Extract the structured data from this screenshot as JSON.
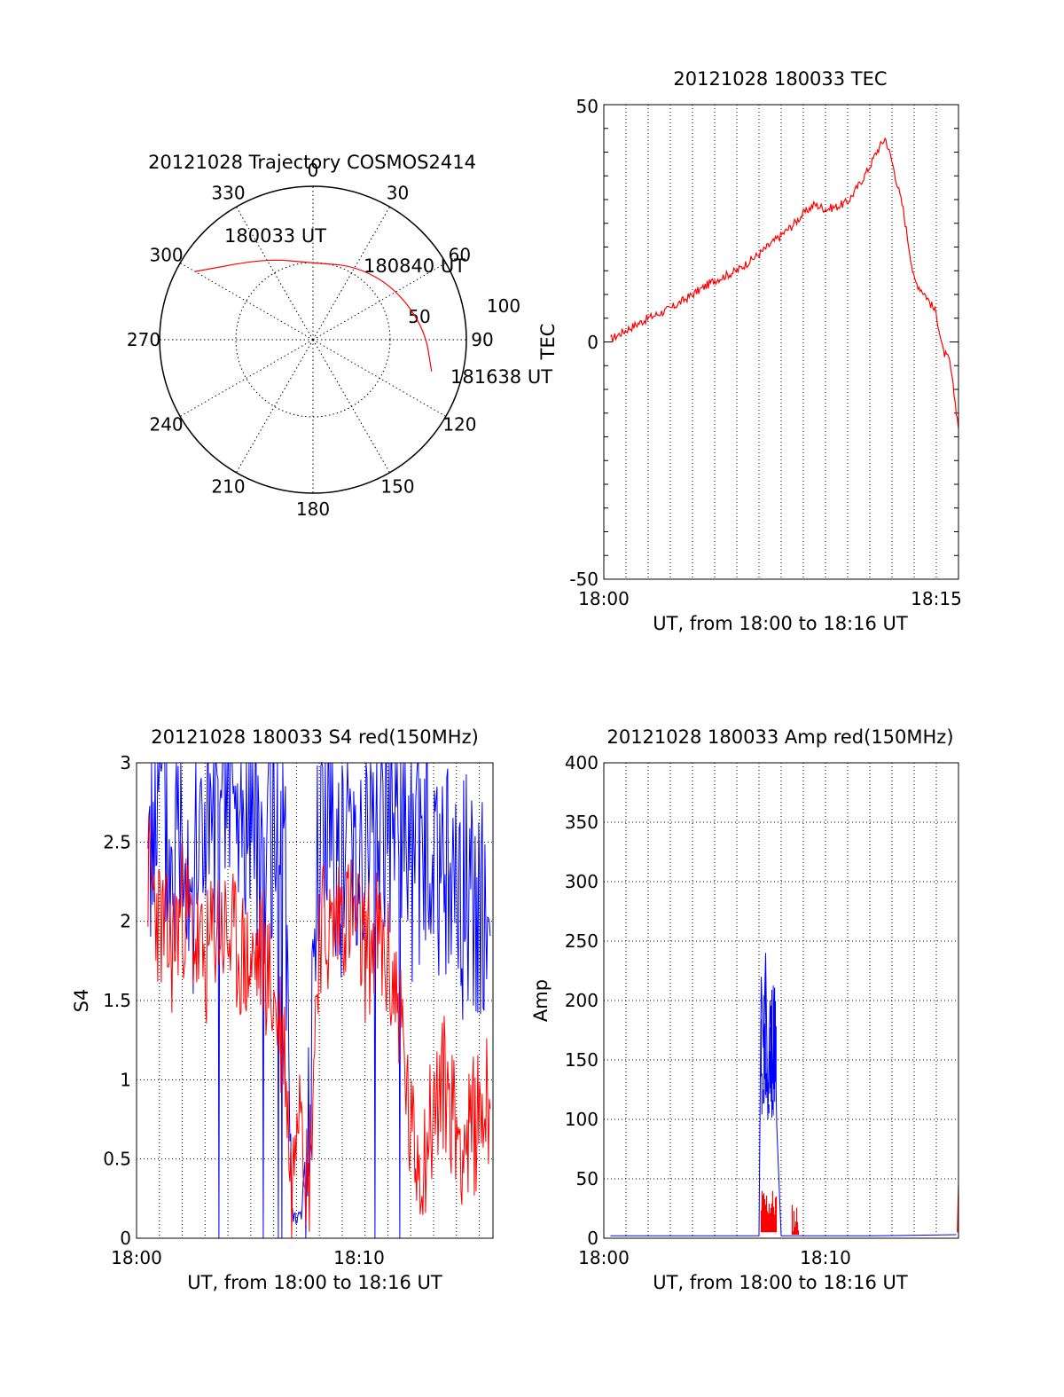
{
  "chart_data": [
    {
      "type": "polar-trajectory",
      "title": "20121028 Trajectory COSMOS2414",
      "azimuth_labels": [
        "0",
        "30",
        "60",
        "90",
        "120",
        "150",
        "180",
        "210",
        "240",
        "270",
        "300",
        "330"
      ],
      "radial_labels": [
        "50",
        "100"
      ],
      "annotations": [
        "180033 UT",
        "180840 UT",
        "181638 UT"
      ],
      "trajectory": [
        {
          "time": "180033 UT",
          "az": 300,
          "el": 10
        },
        {
          "az": 330,
          "el": 35
        },
        {
          "az": 0,
          "el": 45
        },
        {
          "az": 30,
          "el": 40
        },
        {
          "time": "180840 UT",
          "az": 58,
          "el": 33
        },
        {
          "az": 85,
          "el": 24
        },
        {
          "time": "181638 UT",
          "az": 105,
          "el": 18
        }
      ],
      "colors": {
        "trajectory": "#ff0000",
        "grid": "#000000"
      }
    },
    {
      "type": "line",
      "title": "20121028 180033 TEC",
      "xlabel": "UT, from 18:00 to 18:16 UT",
      "ylabel": "TEC",
      "x_ticks": [
        "18:00",
        "18:15"
      ],
      "y_ticks": [
        "50",
        "0",
        "-50"
      ],
      "xlim": [
        0,
        16
      ],
      "ylim": [
        -50,
        50
      ],
      "grid": "vertical-dotted",
      "series": [
        {
          "color": "#ff0000",
          "x": [
            0.3,
            1.0,
            2.0,
            3.0,
            4.0,
            5.0,
            6.0,
            7.0,
            8.0,
            8.5,
            9.0,
            9.5,
            10.0,
            10.5,
            11.0,
            11.5,
            12.0,
            12.3,
            12.7,
            13.0,
            13.5,
            14.0,
            14.5,
            15.0,
            15.3,
            15.6,
            16.0
          ],
          "y": [
            0.5,
            2.5,
            5.0,
            7.0,
            10.0,
            13.0,
            15.0,
            18.5,
            22.5,
            24.5,
            27.0,
            29.0,
            28.0,
            28.5,
            29.5,
            33.0,
            37.0,
            40.0,
            43.0,
            38.0,
            28.0,
            13.0,
            10.0,
            6.0,
            -2.0,
            -4.0,
            -18.0
          ]
        }
      ]
    },
    {
      "type": "line",
      "title": "20121028 180033 S4 red(150MHz)",
      "xlabel": "UT, from 18:00 to 18:16 UT",
      "ylabel": "S4",
      "x_ticks": [
        "18:00",
        "18:10"
      ],
      "y_ticks": [
        "0",
        "0.5",
        "1",
        "1.5",
        "2",
        "2.5",
        "3"
      ],
      "xlim": [
        0,
        15.6
      ],
      "ylim": [
        0,
        3
      ],
      "grid": "dotted",
      "series": [
        {
          "color": "#0000ff",
          "x": [
            0.5,
            1.0,
            1.5,
            2.0,
            2.5,
            3.0,
            3.5,
            4.0,
            4.5,
            5.0,
            5.5,
            6.0,
            6.5,
            6.8,
            7.0,
            7.2,
            7.5,
            8.0,
            8.5,
            9.0,
            9.5,
            10.0,
            10.5,
            11.0,
            11.5,
            12.0,
            12.5,
            13.0,
            13.5,
            14.0,
            14.5,
            15.0,
            15.5
          ],
          "y": [
            2.6,
            2.9,
            2.3,
            2.8,
            2.2,
            2.7,
            2.4,
            2.9,
            2.5,
            2.8,
            2.4,
            2.7,
            2.2,
            0.15,
            0.12,
            0.13,
            0.75,
            2.5,
            2.8,
            2.3,
            2.7,
            2.4,
            2.8,
            2.5,
            2.9,
            2.3,
            2.6,
            2.2,
            2.5,
            2.0,
            2.3,
            2.0,
            2.2
          ]
        },
        {
          "color": "#ff0000",
          "x": [
            0.5,
            1.0,
            1.5,
            2.0,
            2.5,
            3.0,
            3.5,
            4.0,
            4.5,
            5.0,
            5.5,
            6.0,
            6.5,
            6.8,
            7.0,
            7.2,
            7.5,
            8.0,
            8.5,
            9.0,
            9.5,
            10.0,
            10.5,
            11.0,
            11.5,
            12.0,
            12.5,
            13.0,
            13.5,
            14.0,
            14.5,
            15.0,
            15.5
          ],
          "y": [
            2.3,
            2.0,
            1.8,
            2.1,
            1.9,
            1.7,
            2.0,
            1.9,
            1.8,
            1.7,
            1.8,
            1.5,
            1.2,
            0.17,
            1.0,
            1.1,
            0.2,
            2.0,
            1.9,
            2.1,
            2.0,
            1.8,
            1.9,
            1.7,
            1.5,
            0.6,
            0.5,
            0.8,
            1.0,
            0.7,
            0.6,
            0.8,
            0.9
          ]
        }
      ]
    },
    {
      "type": "line",
      "title": "20121028 180033 Amp red(150MHz)",
      "xlabel": "UT, from 18:00 to 18:16 UT",
      "ylabel": "Amp",
      "x_ticks": [
        "18:00",
        "18:10"
      ],
      "y_ticks": [
        "0",
        "50",
        "100",
        "150",
        "200",
        "250",
        "300",
        "350",
        "400"
      ],
      "xlim": [
        0,
        16
      ],
      "ylim": [
        0,
        400
      ],
      "grid": "dotted",
      "series": [
        {
          "color": "#0000ff",
          "x": [
            0.3,
            5.0,
            7.0,
            7.1,
            7.2,
            7.3,
            7.4,
            7.5,
            7.6,
            7.7,
            7.8,
            8.0,
            9.0,
            12.0,
            15.9
          ],
          "y": [
            2,
            2,
            2,
            220,
            160,
            240,
            100,
            200,
            130,
            210,
            95,
            2,
            2,
            2,
            3
          ]
        },
        {
          "color": "#ff0000",
          "x": [
            7.1,
            7.3,
            7.5,
            7.7,
            8.5,
            8.6,
            8.7,
            8.8,
            15.95,
            16.0
          ],
          "y": [
            25,
            40,
            30,
            42,
            10,
            28,
            8,
            3,
            5,
            45
          ]
        }
      ]
    }
  ]
}
